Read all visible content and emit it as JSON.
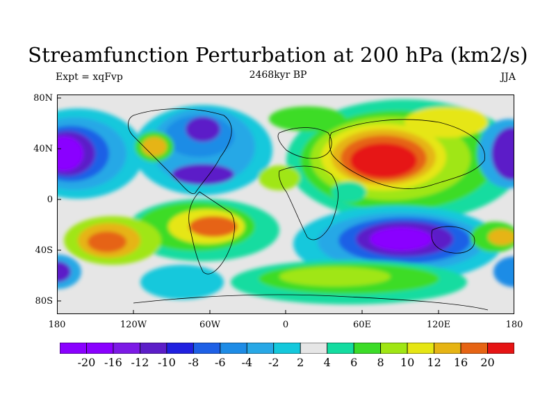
{
  "title": "Streamfunction Perturbation at 200 hPa (km2/s)",
  "left_label": "Expt = xqFvp",
  "center_label": "2468kyr BP",
  "right_label": "JJA",
  "y_ticks": [
    "80N",
    "40N",
    "0",
    "40S",
    "80S"
  ],
  "x_ticks": [
    "180",
    "120W",
    "60W",
    "0",
    "60E",
    "120E",
    "180"
  ],
  "colorbar": {
    "labels": [
      "-20",
      "-16",
      "-12",
      "-10",
      "-8",
      "-6",
      "-4",
      "-2",
      "2",
      "4",
      "6",
      "8",
      "10",
      "12",
      "16",
      "20"
    ],
    "colors": [
      "#8a00ff",
      "#7c1ae6",
      "#5c1ec8",
      "#2020e0",
      "#1e60e6",
      "#1e8ce6",
      "#28a8e6",
      "#14c8dc",
      "#e6e6e6",
      "#14dca0",
      "#3cdc28",
      "#a0e614",
      "#e6e614",
      "#e6b414",
      "#e66414",
      "#e61414"
    ]
  },
  "map": {
    "projection": "cylindrical-equidistant",
    "lon_range": [
      -180,
      180
    ],
    "lat_range": [
      -90,
      90
    ],
    "field_description": "streamfunction anomaly contour fill with coastlines",
    "colors": {
      "neutral": "#e6e6e6",
      "strong_positive": "#e61414",
      "strong_negative": "#8a00ff"
    }
  }
}
